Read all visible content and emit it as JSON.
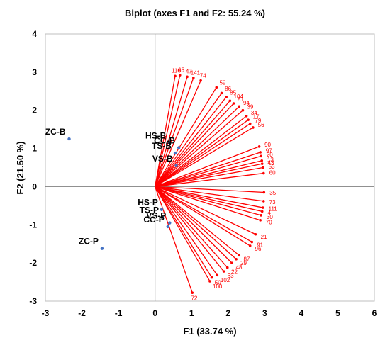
{
  "chart_data": {
    "type": "scatter",
    "title": "Biplot (axes F1 and F2: 55.24 %)",
    "xlabel": "F1 (33.74 %)",
    "ylabel": "F2 (21.50 %)",
    "xlim": [
      -3,
      6
    ],
    "ylim": [
      -3,
      4
    ],
    "x_ticks": [
      "-3",
      "-2",
      "-1",
      "0",
      "1",
      "2",
      "3",
      "4",
      "5",
      "6"
    ],
    "y_ticks": [
      "-3",
      "-2",
      "-1",
      "0",
      "1",
      "2",
      "3",
      "4"
    ],
    "grid": false,
    "colors": {
      "observations": "#4472c4",
      "variables": "#ff0000",
      "frame": "#bfbfbf",
      "axis": "#808080"
    },
    "observations": [
      {
        "label": "ZC-B",
        "x": -2.35,
        "y": 1.25
      },
      {
        "label": "HS-B",
        "x": 0.4,
        "y": 1.15
      },
      {
        "label": "CC-B",
        "x": 0.65,
        "y": 1.02
      },
      {
        "label": "TS-B",
        "x": 0.55,
        "y": 0.88
      },
      {
        "label": "VS-B",
        "x": 0.58,
        "y": 0.55
      },
      {
        "label": "HS-P",
        "x": 0.18,
        "y": -0.6
      },
      {
        "label": "TS-P",
        "x": 0.2,
        "y": -0.8
      },
      {
        "label": "VS-P",
        "x": 0.4,
        "y": -0.95
      },
      {
        "label": "CC-P",
        "x": 0.35,
        "y": -1.05
      },
      {
        "label": "ZC-P",
        "x": -1.45,
        "y": -1.62
      }
    ],
    "variables": [
      {
        "label": "116",
        "x": 0.55,
        "y": 2.9
      },
      {
        "label": "65",
        "x": 0.68,
        "y": 2.92
      },
      {
        "label": "47",
        "x": 0.88,
        "y": 2.88
      },
      {
        "label": "141",
        "x": 1.05,
        "y": 2.85
      },
      {
        "label": "74",
        "x": 1.25,
        "y": 2.78
      },
      {
        "label": "59",
        "x": 1.68,
        "y": 2.6
      },
      {
        "label": "86",
        "x": 1.82,
        "y": 2.45
      },
      {
        "label": "85",
        "x": 1.95,
        "y": 2.35
      },
      {
        "label": "104",
        "x": 2.05,
        "y": 2.25
      },
      {
        "label": "81",
        "x": 2.15,
        "y": 2.18
      },
      {
        "label": "94",
        "x": 2.3,
        "y": 2.1
      },
      {
        "label": "39",
        "x": 2.4,
        "y": 2.0
      },
      {
        "label": "34",
        "x": 2.5,
        "y": 1.85
      },
      {
        "label": "17",
        "x": 2.55,
        "y": 1.75
      },
      {
        "label": "79",
        "x": 2.6,
        "y": 1.65
      },
      {
        "label": "56",
        "x": 2.68,
        "y": 1.55
      },
      {
        "label": "90",
        "x": 2.85,
        "y": 1.05
      },
      {
        "label": "97",
        "x": 2.88,
        "y": 0.9
      },
      {
        "label": "20",
        "x": 2.9,
        "y": 0.8
      },
      {
        "label": "13",
        "x": 2.92,
        "y": 0.68
      },
      {
        "label": "43",
        "x": 2.93,
        "y": 0.6
      },
      {
        "label": "53",
        "x": 2.95,
        "y": 0.5
      },
      {
        "label": "60",
        "x": 2.97,
        "y": 0.35
      },
      {
        "label": "35",
        "x": 2.98,
        "y": -0.15
      },
      {
        "label": "73",
        "x": 2.97,
        "y": -0.38
      },
      {
        "label": "111",
        "x": 2.95,
        "y": -0.55
      },
      {
        "label": "4",
        "x": 2.93,
        "y": -0.65
      },
      {
        "label": "30",
        "x": 2.9,
        "y": -0.75
      },
      {
        "label": "70",
        "x": 2.88,
        "y": -0.88
      },
      {
        "label": "21",
        "x": 2.75,
        "y": -1.25
      },
      {
        "label": "91",
        "x": 2.65,
        "y": -1.45
      },
      {
        "label": "96",
        "x": 2.6,
        "y": -1.55
      },
      {
        "label": "87",
        "x": 2.3,
        "y": -1.8
      },
      {
        "label": "29",
        "x": 2.22,
        "y": -1.9
      },
      {
        "label": "48",
        "x": 2.1,
        "y": -2.0
      },
      {
        "label": "22",
        "x": 1.98,
        "y": -2.12
      },
      {
        "label": "63",
        "x": 1.88,
        "y": -2.22
      },
      {
        "label": "102",
        "x": 1.7,
        "y": -2.32
      },
      {
        "label": "50",
        "x": 1.55,
        "y": -2.38
      },
      {
        "label": "100",
        "x": 1.5,
        "y": -2.48
      },
      {
        "label": "72",
        "x": 1.02,
        "y": -2.78
      }
    ]
  }
}
